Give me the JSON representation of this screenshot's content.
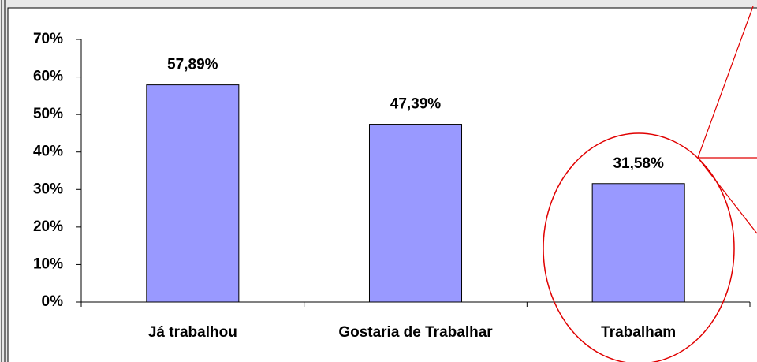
{
  "chart_data": {
    "type": "bar",
    "categories": [
      "Já trabalhou",
      "Gostaria de Trabalhar",
      "Trabalham"
    ],
    "values": [
      57.89,
      47.39,
      31.58
    ],
    "value_labels": [
      "57,89%",
      "47,39%",
      "31,58%"
    ],
    "color": "#9999ff",
    "ylim": [
      0,
      70
    ],
    "yticks": [
      {
        "value": 0,
        "label": "0%"
      },
      {
        "value": 10,
        "label": "10%"
      },
      {
        "value": 20,
        "label": "20%"
      },
      {
        "value": 30,
        "label": "30%"
      },
      {
        "value": 40,
        "label": "40%"
      },
      {
        "value": 50,
        "label": "50%"
      },
      {
        "value": 60,
        "label": "60%"
      },
      {
        "value": 70,
        "label": "70%"
      }
    ],
    "grid": false
  }
}
